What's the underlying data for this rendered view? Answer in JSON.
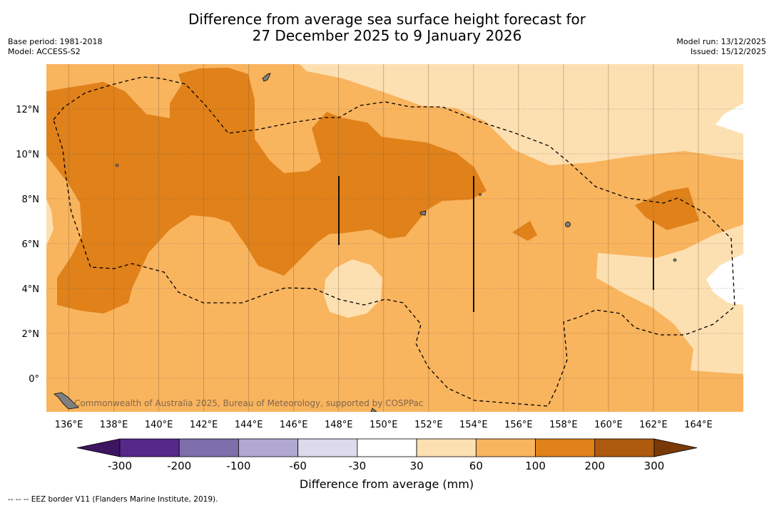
{
  "title": {
    "line1": "Difference from average sea surface height forecast for",
    "line2": "27 December 2025 to 9 January 2026"
  },
  "meta_left": {
    "base_period": "Base period: 1981-2018",
    "model": "Model: ACCESS-S2"
  },
  "meta_right": {
    "model_run": "Model run: 13/12/2025",
    "issued": "Issued: 15/12/2025"
  },
  "map": {
    "lon_range": [
      135,
      166
    ],
    "lat_range": [
      -1.5,
      14
    ],
    "lon_ticks": [
      "136°E",
      "138°E",
      "140°E",
      "142°E",
      "144°E",
      "146°E",
      "148°E",
      "150°E",
      "152°E",
      "154°E",
      "156°E",
      "158°E",
      "160°E",
      "162°E",
      "164°E"
    ],
    "lat_ticks": [
      "12°N",
      "10°N",
      "8°N",
      "6°N",
      "4°N",
      "2°N",
      "0°"
    ],
    "copyright": "Commonwealth of Australia 2025, Bureau of Meteorology, supported by COSPPac"
  },
  "colorbar": {
    "ticks": [
      "-300",
      "-200",
      "-100",
      "-60",
      "-30",
      "30",
      "60",
      "100",
      "200",
      "300"
    ],
    "colors": [
      "#3d1560",
      "#55288a",
      "#7e6eab",
      "#b0a8d2",
      "#dcdaec",
      "#ffffff",
      "#fde0b2",
      "#f9b45e",
      "#e0811a",
      "#ae5a0e",
      "#7a3a08"
    ],
    "label": "Difference from average (mm)"
  },
  "footnote": "--  --  -- EEZ border V11 (Flanders Marine Institute, 2019)."
}
